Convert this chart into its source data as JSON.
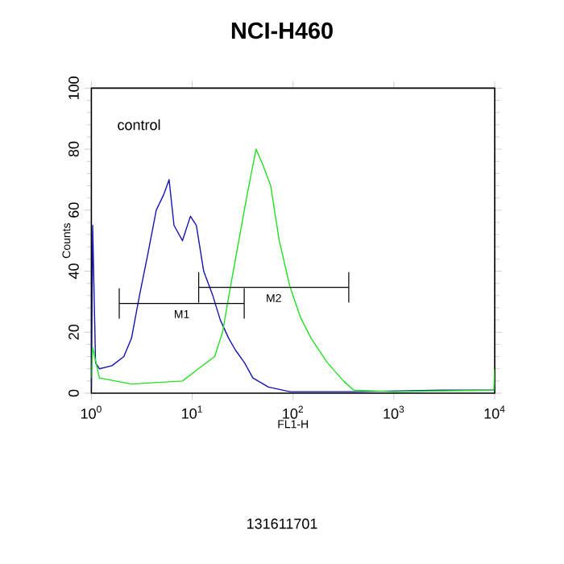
{
  "chart_data": {
    "type": "line",
    "title": "NCI-H460",
    "xlabel": "FL1-H",
    "ylabel": "Counts",
    "log": "x",
    "xlim": [
      1,
      10000
    ],
    "xticks": [
      {
        "value": 1,
        "label": "10$^{0}$"
      },
      {
        "value": 10,
        "label": "10$^{1}$"
      },
      {
        "value": 100,
        "label": "10$^{2}$"
      },
      {
        "value": 1000,
        "label": "10$^{3}$"
      },
      {
        "value": 10000,
        "label": "10$^{4}$"
      }
    ],
    "ylim": [
      0,
      100
    ],
    "yticks": [
      0,
      20,
      40,
      60,
      80,
      100
    ],
    "grid": false,
    "legend": false,
    "annotations": [
      "control",
      "131611701"
    ],
    "series": [
      {
        "color": "#1414b4",
        "x": [
          1.0,
          1.03,
          1.1,
          1.2,
          1.6,
          2.1,
          2.5,
          3.0,
          3.6,
          4.4,
          5.2,
          5.9,
          6.6,
          8.0,
          9.6,
          11,
          13,
          16,
          19,
          23,
          27,
          33,
          40,
          57,
          93,
          400,
          3000,
          10000
        ],
        "values": [
          2,
          55,
          10,
          8,
          9,
          12,
          18,
          32,
          45,
          60,
          65,
          70,
          55,
          50,
          58,
          55,
          40,
          32,
          24,
          18,
          14,
          10,
          5,
          2,
          0.5,
          0.5,
          1,
          1
        ]
      },
      {
        "color": "#22e022",
        "x": [
          1.0,
          1.03,
          1.2,
          2.5,
          8,
          11.5,
          16.7,
          20,
          24,
          29,
          35,
          43,
          50,
          60,
          73,
          93,
          118,
          151,
          219,
          316,
          400,
          1000,
          9800,
          10000
        ],
        "values": [
          5,
          15,
          5,
          3,
          4,
          8,
          12,
          20,
          35,
          50,
          65,
          80,
          75,
          68,
          50,
          35,
          25,
          18,
          10,
          4,
          1,
          0.5,
          1,
          8
        ]
      },
      {
        "type": "line",
        "name": "M1",
        "color": "#000000",
        "x": [
          1.89,
          32.8
        ],
        "values": [
          29.4,
          29.4
        ],
        "errors": [
          5,
          5
        ]
      },
      {
        "type": "line",
        "name": "M2",
        "color": "#000000",
        "x": [
          11.6,
          357
        ],
        "values": [
          34.7,
          34.7
        ],
        "errors": [
          5,
          5
        ]
      }
    ]
  }
}
